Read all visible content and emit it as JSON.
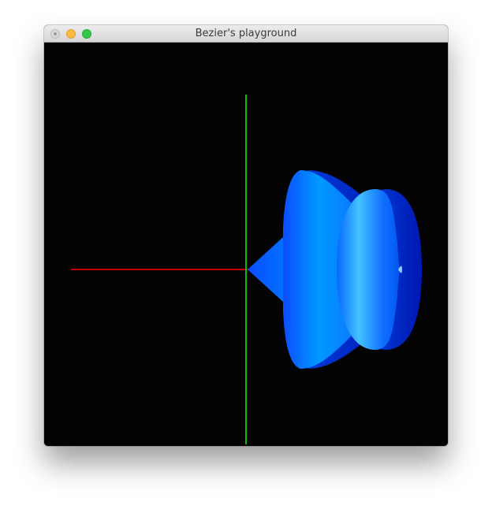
{
  "window": {
    "title": "Bezier's playground",
    "controls": [
      "close-button",
      "minimize-button",
      "zoom-button"
    ]
  },
  "scene": {
    "background_color": "#030303",
    "axes": {
      "x_axis_color": "#b00000",
      "y_axis_color": "#00bb00"
    },
    "shape_color": "#0b5cff"
  }
}
